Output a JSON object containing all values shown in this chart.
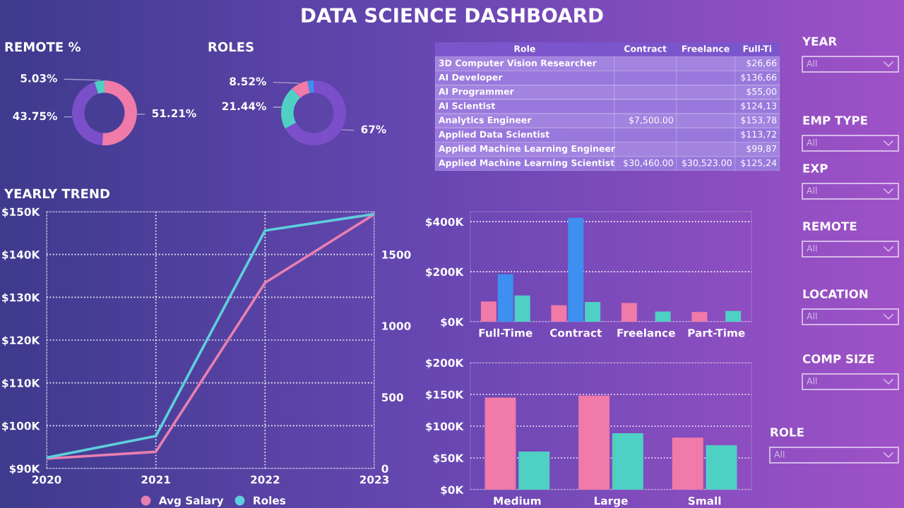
{
  "chart_data": [
    {
      "type": "other",
      "title": "DATA SCIENCE DASHBOARD"
    },
    {
      "type": "donut",
      "title": "REMOTE %",
      "categories": [
        null,
        null,
        null
      ],
      "values": [
        51.21,
        43.75,
        5.03
      ],
      "colors": [
        "#f07aa8",
        "#7b4fc9",
        "#4fd0c4"
      ],
      "value_labels": [
        "51.21%",
        "43.75%",
        "5.03%"
      ]
    },
    {
      "type": "donut",
      "title": "ROLES",
      "categories": [
        null,
        null,
        null,
        null
      ],
      "values": [
        67,
        21.44,
        8.52,
        3.04
      ],
      "colors": [
        "#7b4fc9",
        "#4fd0c4",
        "#f07aa8",
        "#3d8ff0"
      ],
      "value_labels": [
        "67%",
        "21.44%",
        "8.52%",
        null
      ]
    },
    {
      "type": "other",
      "categories": [
        "Role",
        "Contract",
        "Freelance",
        "Full-Ti"
      ],
      "y_categories": [
        "3D Computer Vision Researcher",
        "AI Developer",
        "AI Programmer",
        "AI Scientist",
        "Analytics Engineer",
        "Applied Data Scientist",
        "Applied Machine Learning Engineer",
        "Applied Machine Learning Scientist"
      ],
      "cell_labels": [
        [
          null,
          null,
          "$26,66"
        ],
        [
          null,
          null,
          "$136,66"
        ],
        [
          null,
          null,
          "$55,00"
        ],
        [
          null,
          null,
          "$124,13"
        ],
        [
          "$7,500.00",
          null,
          "$153,78"
        ],
        [
          null,
          null,
          "$113,72"
        ],
        [
          null,
          null,
          "$99,87"
        ],
        [
          "$30,460.00",
          "$30,523.00",
          "$125,24"
        ]
      ]
    },
    {
      "type": "line",
      "title": "YEARLY TREND",
      "x": [
        2020,
        2021,
        2022,
        2023
      ],
      "xlim": [
        2020,
        2023
      ],
      "xticks": [
        2020,
        2021,
        2022,
        2023
      ],
      "ylim": [
        90,
        150
      ],
      "yticks": [
        {
          "value": 90,
          "label": "$90K"
        },
        {
          "value": 100,
          "label": "$100K"
        },
        {
          "value": 110,
          "label": "$110K"
        },
        {
          "value": 120,
          "label": "$120K"
        },
        {
          "value": 130,
          "label": "$130K"
        },
        {
          "value": 140,
          "label": "$140K"
        },
        {
          "value": 150,
          "label": "$150K"
        }
      ],
      "y2lim": [
        0,
        1800
      ],
      "y2ticks": [
        0,
        500,
        1000,
        1500
      ],
      "grid": true,
      "legend": "bottom",
      "series": [
        {
          "name": "Avg Salary",
          "color": "#e87fb0",
          "values": [
            92.3,
            93.9,
            133.4,
            149.4
          ]
        },
        {
          "name": "Roles",
          "color": "#5ecfdc",
          "axis": "y2",
          "values": [
            76,
            227,
            1668,
            1783
          ]
        }
      ]
    },
    {
      "type": "bar",
      "categories": [
        "Full-Time",
        "Contract",
        "Freelance",
        "Part-Time"
      ],
      "ylim": [
        0,
        440
      ],
      "yticks": [
        {
          "value": 0,
          "label": "$0K"
        },
        {
          "value": 200,
          "label": "$200K"
        },
        {
          "value": 400,
          "label": "$400K"
        }
      ],
      "grid": "y",
      "series": [
        {
          "color": "#f07aa8",
          "values": [
            81,
            66,
            75,
            39
          ]
        },
        {
          "color": "#3d8ff0",
          "values": [
            190,
            415,
            null,
            null
          ]
        },
        {
          "color": "#4fd0c4",
          "values": [
            105,
            79,
            41,
            43
          ]
        }
      ]
    },
    {
      "type": "bar",
      "categories": [
        "Medium",
        "Large",
        "Small"
      ],
      "ylim": [
        0,
        200
      ],
      "yticks": [
        {
          "value": 0,
          "label": "$0K"
        },
        {
          "value": 50,
          "label": "$50K"
        },
        {
          "value": 100,
          "label": "$100K"
        },
        {
          "value": 150,
          "label": "$150K"
        },
        {
          "value": 200,
          "label": "$200K"
        }
      ],
      "grid": "y",
      "series": [
        {
          "color": "#f07aa8",
          "values": [
            145,
            148,
            82
          ]
        },
        {
          "color": "#4fd0c4",
          "values": [
            60,
            89,
            70
          ]
        }
      ]
    },
    {
      "type": "other",
      "categories": [
        "YEAR",
        "EMP TYPE",
        "EXP",
        "REMOTE",
        "LOCATION",
        "COMP SIZE",
        "ROLE"
      ],
      "annotations": [
        "All",
        "All",
        "All",
        "All",
        "All",
        "All",
        "All"
      ]
    }
  ]
}
